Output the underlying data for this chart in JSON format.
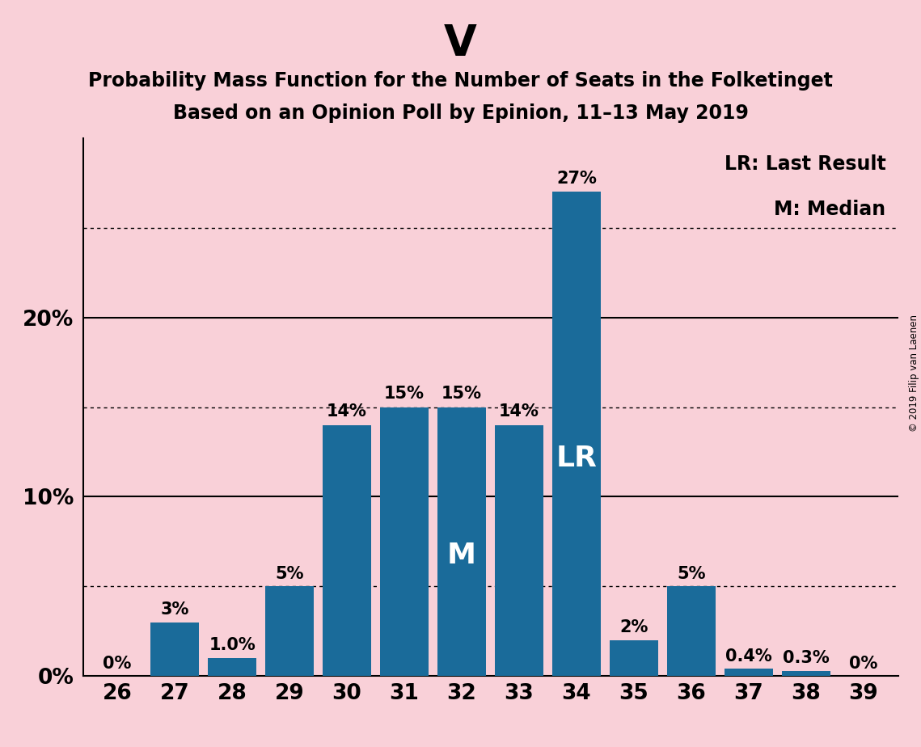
{
  "title_main": "V",
  "title_line1": "Probability Mass Function for the Number of Seats in the Folketinget",
  "title_line2": "Based on an Opinion Poll by Epinion, 11–13 May 2019",
  "categories": [
    26,
    27,
    28,
    29,
    30,
    31,
    32,
    33,
    34,
    35,
    36,
    37,
    38,
    39
  ],
  "values": [
    0.0,
    3.0,
    1.0,
    5.0,
    14.0,
    15.0,
    15.0,
    14.0,
    27.0,
    2.0,
    5.0,
    0.4,
    0.3,
    0.0
  ],
  "labels": [
    "0%",
    "3%",
    "1.0%",
    "5%",
    "14%",
    "15%",
    "15%",
    "14%",
    "27%",
    "2%",
    "5%",
    "0.4%",
    "0.3%",
    "0%"
  ],
  "bar_color": "#1a6b9a",
  "background_color": "#f9d0d8",
  "ylim": [
    0,
    30
  ],
  "yticks": [
    0,
    10,
    20
  ],
  "ytick_labels": [
    "0%",
    "10%",
    "20%"
  ],
  "solid_yticks": [
    10,
    20
  ],
  "dotted_yticks": [
    5,
    15,
    25
  ],
  "median_bar": 32,
  "lr_bar": 34,
  "legend_lr": "LR: Last Result",
  "legend_m": "M: Median",
  "copyright": "© 2019 Filip van Laenen",
  "title_main_fontsize": 38,
  "title_sub_fontsize": 17,
  "label_fontsize": 15,
  "axis_fontsize": 19,
  "annotation_fontsize": 17,
  "bar_label_threshold": 8,
  "median_label_fontsize": 26,
  "lr_label_fontsize": 26
}
